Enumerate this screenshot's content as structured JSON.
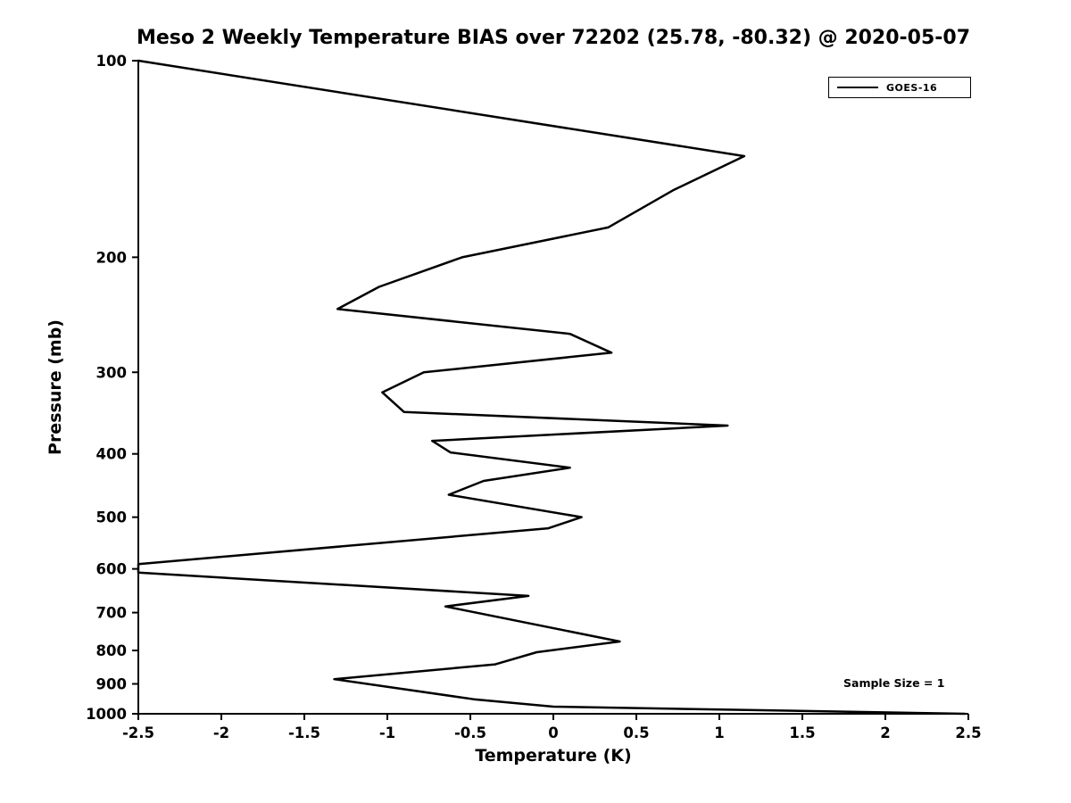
{
  "chart_data": {
    "type": "line",
    "title": "Meso 2 Weekly Temperature BIAS over 72202 (25.78, -80.32) @ 2020-05-07",
    "xlabel": "Temperature (K)",
    "ylabel": "Pressure (mb)",
    "xlim": [
      -2.5,
      2.5
    ],
    "ylim": [
      1000,
      100
    ],
    "yscale": "log",
    "y_axis_inverted": true,
    "grid": false,
    "x_ticks": [
      -2.5,
      -2,
      -1.5,
      -1,
      -0.5,
      0,
      0.5,
      1,
      1.5,
      2,
      2.5
    ],
    "x_tick_labels": [
      "-2.5",
      "-2",
      "-1.5",
      "-1",
      "-0.5",
      "0",
      "0.5",
      "1",
      "1.5",
      "2",
      "2.5"
    ],
    "y_ticks": [
      100,
      200,
      300,
      400,
      500,
      600,
      700,
      800,
      900,
      1000
    ],
    "y_tick_labels": [
      "100",
      "200",
      "300",
      "400",
      "500",
      "600",
      "700",
      "800",
      "900",
      "1000"
    ],
    "line_color": "#000000",
    "line_width": 2.5,
    "legend": {
      "position": "upper right",
      "entries": [
        {
          "label": "GOES-16",
          "color": "#000000"
        }
      ]
    },
    "annotation": {
      "text": "Sample Size = 1"
    },
    "series": [
      {
        "name": "GOES-16",
        "color": "#000000",
        "points_pressure_mb_bias_k": [
          [
            100,
            -2.5
          ],
          [
            140,
            1.15
          ],
          [
            158,
            0.72
          ],
          [
            180,
            0.33
          ],
          [
            200,
            -0.55
          ],
          [
            222,
            -1.05
          ],
          [
            240,
            -1.3
          ],
          [
            262,
            0.1
          ],
          [
            280,
            0.35
          ],
          [
            300,
            -0.78
          ],
          [
            322,
            -1.03
          ],
          [
            345,
            -0.9
          ],
          [
            362,
            1.05
          ],
          [
            382,
            -0.73
          ],
          [
            398,
            -0.62
          ],
          [
            420,
            0.1
          ],
          [
            440,
            -0.42
          ],
          [
            462,
            -0.63
          ],
          [
            500,
            0.17
          ],
          [
            520,
            -0.03
          ],
          [
            590,
            -2.5
          ],
          [
            608,
            -2.5
          ],
          [
            660,
            -0.15
          ],
          [
            685,
            -0.65
          ],
          [
            775,
            0.4
          ],
          [
            805,
            -0.1
          ],
          [
            840,
            -0.35
          ],
          [
            885,
            -1.32
          ],
          [
            950,
            -0.48
          ],
          [
            975,
            0.0
          ],
          [
            1000,
            2.48
          ]
        ]
      }
    ]
  }
}
